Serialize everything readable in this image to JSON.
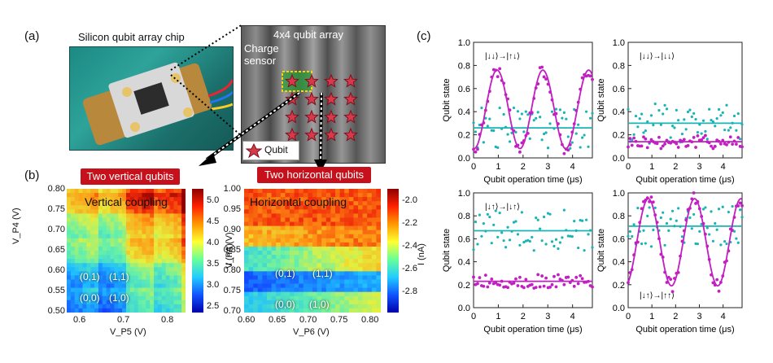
{
  "panel_a": {
    "label": "(a)",
    "chip_title": "Silicon qubit array chip",
    "array_title": "4x4 qubit array",
    "charge_sensor": "Charge sensor",
    "qubit_legend": "Qubit"
  },
  "panel_b": {
    "label": "(b)",
    "left": {
      "title": "Two vertical qubits",
      "heat_title": "Vertical coupling",
      "xlabel": "V_P5 (V)",
      "ylabel": "V_P4 (V)",
      "xticks": [
        "0.6",
        "0.7",
        "0.8"
      ],
      "yticks": [
        "0.80",
        "0.75",
        "0.70",
        "0.65",
        "0.60",
        "0.55",
        "0.50"
      ],
      "cbar_label": "I (nA)",
      "cbar_ticks": [
        "5.0",
        "4.5",
        "4.0",
        "3.5",
        "3.0",
        "2.5"
      ],
      "states": [
        "(0,1)",
        "(1,1)",
        "(0,0)",
        "(1,0)"
      ]
    },
    "right": {
      "title": "Two horizontal qubits",
      "heat_title": "Horizontal coupling",
      "xlabel": "V_P6 (V)",
      "ylabel": "V_P4 (V)",
      "xticks": [
        "0.60",
        "0.65",
        "0.70",
        "0.75",
        "0.80"
      ],
      "yticks": [
        "1.00",
        "0.95",
        "0.90",
        "0.85",
        "0.80",
        "0.75",
        "0.70"
      ],
      "cbar_label": "I (nA)",
      "cbar_ticks": [
        "-2.0",
        "-2.2",
        "-2.4",
        "-2.6",
        "-2.8"
      ],
      "states": [
        "(0,1)",
        "(1,1)",
        "(0,0)",
        "(1,0)"
      ]
    }
  },
  "panel_c": {
    "label": "(c)"
  },
  "chart_data": [
    {
      "type": "scatter",
      "annotation": "|↓↓⟩→|↑↓⟩",
      "xlabel": "Qubit operation time (μs)",
      "ylabel": "Qubit state",
      "xlim": [
        0,
        4.8
      ],
      "ylim": [
        0,
        1.0
      ],
      "xticks": [
        "0",
        "1",
        "2",
        "3",
        "4"
      ],
      "yticks": [
        "0.0",
        "0.2",
        "0.4",
        "0.6",
        "0.8",
        "1.0"
      ],
      "magenta_fit": {
        "kind": "sine",
        "offset": 0.42,
        "amp": 0.34,
        "period": 1.85,
        "phase_peak": 0.95
      },
      "cyan_fit": {
        "kind": "flat",
        "value": 0.26
      },
      "colors": {
        "magenta": "#c21ec2",
        "cyan": "#19b4b4"
      }
    },
    {
      "type": "scatter",
      "annotation": "|↓↓⟩→|↓↓⟩",
      "xlabel": "Qubit operation time (μs)",
      "ylabel": "Qubit state",
      "xlim": [
        0,
        4.8
      ],
      "ylim": [
        0,
        1.0
      ],
      "xticks": [
        "0",
        "1",
        "2",
        "3",
        "4"
      ],
      "yticks": [
        "0.0",
        "0.2",
        "0.4",
        "0.6",
        "0.8",
        "1.0"
      ],
      "magenta_fit": {
        "kind": "flat",
        "value": 0.14
      },
      "cyan_fit": {
        "kind": "flat",
        "value": 0.3
      },
      "colors": {
        "magenta": "#c21ec2",
        "cyan": "#19b4b4"
      }
    },
    {
      "type": "scatter",
      "annotation": "|↓↑⟩→|↓↑⟩",
      "xlabel": "Qubit operation time (μs)",
      "ylabel": "Qubit state",
      "xlim": [
        0,
        4.8
      ],
      "ylim": [
        0,
        1.0
      ],
      "xticks": [
        "0",
        "1",
        "2",
        "3",
        "4"
      ],
      "yticks": [
        "0.0",
        "0.2",
        "0.4",
        "0.6",
        "0.8",
        "1.0"
      ],
      "magenta_fit": {
        "kind": "flat",
        "value": 0.23
      },
      "cyan_fit": {
        "kind": "flat",
        "value": 0.67
      },
      "colors": {
        "magenta": "#c21ec2",
        "cyan": "#19b4b4"
      }
    },
    {
      "type": "scatter",
      "annotation": "|↓↑⟩→|↑↑⟩",
      "xlabel": "Qubit operation time (μs)",
      "ylabel": "Qubit state",
      "xlim": [
        0,
        4.8
      ],
      "ylim": [
        0,
        1.0
      ],
      "xticks": [
        "0",
        "1",
        "2",
        "3",
        "4"
      ],
      "yticks": [
        "0.0",
        "0.2",
        "0.4",
        "0.6",
        "0.8",
        "1.0"
      ],
      "magenta_fit": {
        "kind": "sine",
        "offset": 0.57,
        "amp": 0.38,
        "period": 1.95,
        "phase_peak": 0.85
      },
      "cyan_fit": {
        "kind": "flat",
        "value": 0.71
      },
      "colors": {
        "magenta": "#c21ec2",
        "cyan": "#19b4b4"
      }
    }
  ]
}
